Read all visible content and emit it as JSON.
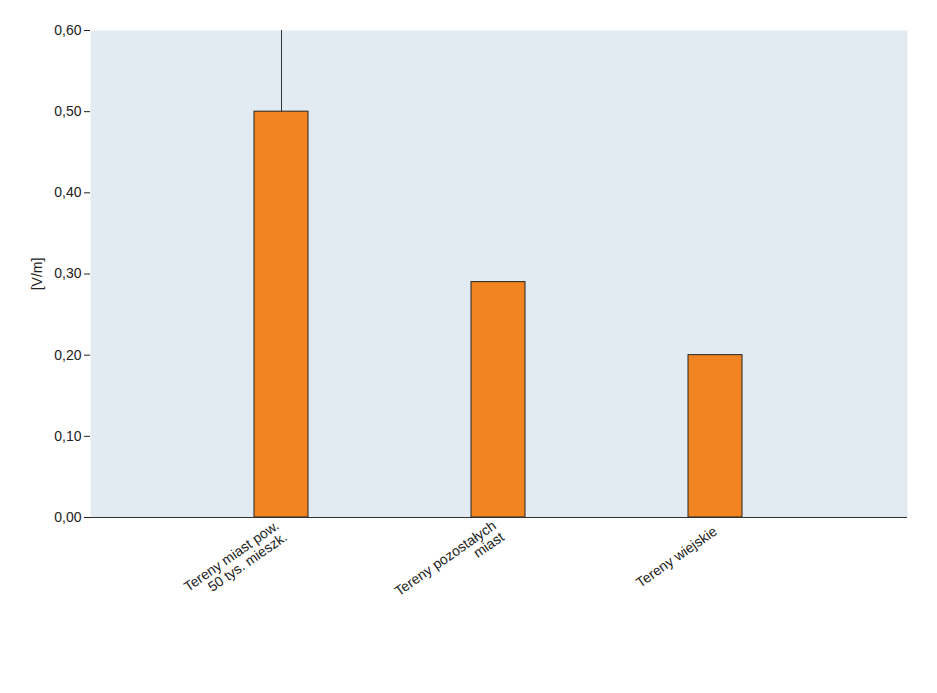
{
  "chart_data": {
    "type": "bar",
    "y_label": "[V/m]",
    "categories": [
      "Tereny miast pow. 50 tys. mieszk.",
      "Tereny pozostałych miast",
      "Tereny wiejskie"
    ],
    "values": [
      0.5,
      0.29,
      0.2
    ],
    "color": "#f28522",
    "ylim": [
      0,
      0.6
    ],
    "yticks": [
      {
        "value": 0,
        "label": "0,00"
      },
      {
        "value": 0.1,
        "label": "0,10"
      },
      {
        "value": 0.2,
        "label": "0,20"
      },
      {
        "value": 0.3,
        "label": "0,30"
      },
      {
        "value": 0.4,
        "label": "0,40"
      },
      {
        "value": 0.5,
        "label": "0,50"
      },
      {
        "value": 0.6,
        "label": "0,60"
      }
    ],
    "grid": false
  }
}
